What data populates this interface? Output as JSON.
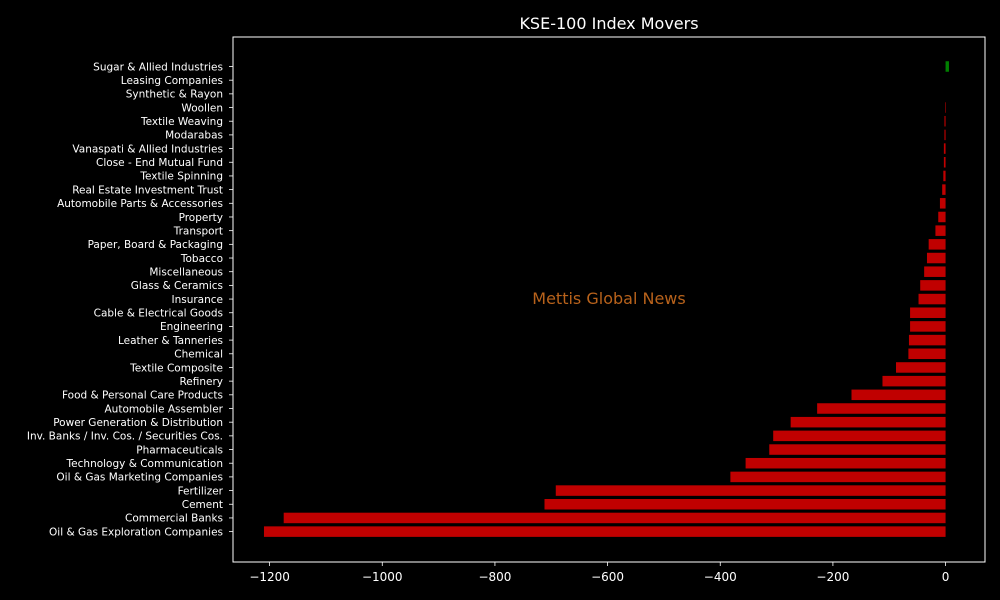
{
  "chart_data": {
    "type": "bar",
    "orientation": "horizontal",
    "title": "KSE-100 Index Movers",
    "watermark": "Mettis Global News",
    "xlim": [
      -1265,
      70
    ],
    "xticks": [
      -1200,
      -1000,
      -800,
      -600,
      -400,
      -200,
      0
    ],
    "xtick_labels": [
      "−1200",
      "−1000",
      "−800",
      "−600",
      "−400",
      "−200",
      "0"
    ],
    "colors": {
      "positive": "#008000",
      "negative": "#c00000",
      "background": "#000000",
      "text": "#ffffff",
      "watermark": "#b8621b"
    },
    "categories": [
      "Sugar & Allied Industries",
      "Leasing Companies",
      "Synthetic & Rayon",
      "Woollen",
      "Textile Weaving",
      "Modarabas",
      "Vanaspati & Allied Industries",
      "Close - End Mutual Fund",
      "Textile Spinning",
      "Real Estate Investment Trust",
      "Automobile Parts & Accessories",
      "Property",
      "Transport",
      "Paper, Board & Packaging",
      "Tobacco",
      "Miscellaneous",
      "Glass & Ceramics",
      "Insurance",
      "Cable & Electrical Goods",
      "Engineering",
      "Leather & Tanneries",
      "Chemical",
      "Textile Composite",
      "Refinery",
      "Food & Personal Care Products",
      "Automobile Assembler",
      "Power Generation & Distribution",
      "Inv. Banks / Inv. Cos. / Securities Cos.",
      "Pharmaceuticals",
      "Technology & Communication",
      "Oil & Gas Marketing Companies",
      "Fertilizer",
      "Cement",
      "Commercial Banks",
      "Oil & Gas Exploration Companies"
    ],
    "values": [
      6,
      0,
      0,
      -1,
      -2,
      -2,
      -3,
      -3,
      -4,
      -6,
      -10,
      -13,
      -18,
      -30,
      -33,
      -38,
      -45,
      -48,
      -63,
      -63,
      -65,
      -66,
      -88,
      -112,
      -167,
      -228,
      -275,
      -306,
      -313,
      -355,
      -382,
      -692,
      -712,
      -1175,
      -1210
    ]
  }
}
